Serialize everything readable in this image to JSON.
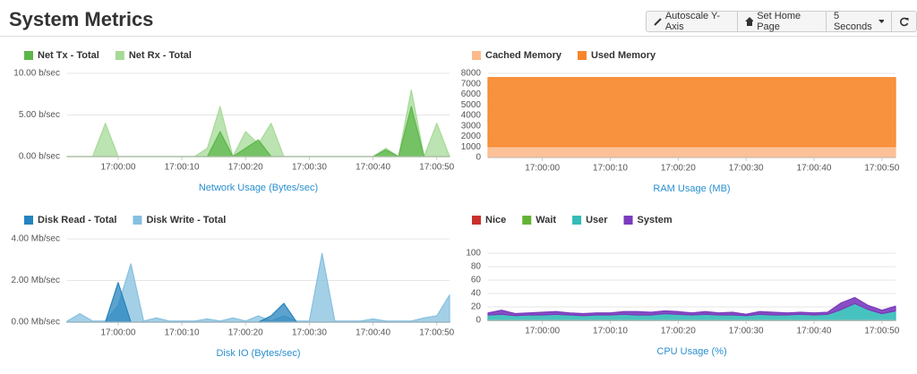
{
  "header": {
    "title": "System Metrics",
    "buttons": [
      "Autoscale Y-Axis",
      "Set Home Page",
      "5 Seconds"
    ]
  },
  "chart_data": [
    {
      "type": "area",
      "stacked": false,
      "xlabel": "Network Usage (Bytes/sec)",
      "grid": true,
      "x": [
        "16:59:52",
        "16:59:54",
        "16:59:56",
        "16:59:58",
        "17:00:00",
        "17:00:02",
        "17:00:04",
        "17:00:06",
        "17:00:08",
        "17:00:10",
        "17:00:12",
        "17:00:14",
        "17:00:16",
        "17:00:18",
        "17:00:20",
        "17:00:22",
        "17:00:24",
        "17:00:26",
        "17:00:28",
        "17:00:30",
        "17:00:32",
        "17:00:34",
        "17:00:36",
        "17:00:38",
        "17:00:40",
        "17:00:42",
        "17:00:44",
        "17:00:46",
        "17:00:48",
        "17:00:50",
        "17:00:52"
      ],
      "xlim": [
        "16:59:52",
        "17:00:52"
      ],
      "xticks": [
        "17:00:00",
        "17:00:10",
        "17:00:20",
        "17:00:30",
        "17:00:40",
        "17:00:50"
      ],
      "ylim": [
        0,
        10
      ],
      "yticks": [
        {
          "value": 0,
          "label": "0.00 b/sec"
        },
        {
          "value": 5,
          "label": "5.00 b/sec"
        },
        {
          "value": 10,
          "label": "10.00 b/sec"
        }
      ],
      "series": [
        {
          "name": "Net Tx - Total",
          "color": "#5cb749",
          "values": [
            0,
            0,
            0,
            0,
            0,
            0,
            0,
            0,
            0,
            0,
            0,
            0,
            3,
            0,
            1,
            2,
            0,
            0,
            0,
            0,
            0,
            0,
            0,
            0,
            0,
            0.8,
            0,
            6,
            0,
            0,
            0
          ]
        },
        {
          "name": "Net Rx - Total",
          "color": "#a6da98",
          "values": [
            0,
            0,
            0,
            4,
            0,
            0,
            0,
            0,
            0,
            0,
            0,
            1,
            6,
            0,
            3,
            1.5,
            4,
            0,
            0,
            0,
            0,
            0,
            0,
            0,
            0,
            1,
            0,
            8,
            0,
            4,
            0
          ]
        }
      ]
    },
    {
      "type": "area",
      "stacked": true,
      "xlabel": "RAM Usage (MB)",
      "grid": true,
      "x": [
        "16:59:52",
        "16:59:54",
        "16:59:56",
        "16:59:58",
        "17:00:00",
        "17:00:02",
        "17:00:04",
        "17:00:06",
        "17:00:08",
        "17:00:10",
        "17:00:12",
        "17:00:14",
        "17:00:16",
        "17:00:18",
        "17:00:20",
        "17:00:22",
        "17:00:24",
        "17:00:26",
        "17:00:28",
        "17:00:30",
        "17:00:32",
        "17:00:34",
        "17:00:36",
        "17:00:38",
        "17:00:40",
        "17:00:42",
        "17:00:44",
        "17:00:46",
        "17:00:48",
        "17:00:50",
        "17:00:52"
      ],
      "xlim": [
        "16:59:52",
        "17:00:52"
      ],
      "xticks": [
        "17:00:00",
        "17:00:10",
        "17:00:20",
        "17:00:30",
        "17:00:40",
        "17:00:50"
      ],
      "ylim": [
        0,
        8000
      ],
      "yticks": [
        0,
        1000,
        2000,
        3000,
        4000,
        5000,
        6000,
        7000,
        8000
      ],
      "series": [
        {
          "name": "Cached Memory",
          "color": "#fdba8c",
          "values": [
            1050,
            1050,
            1050,
            1050,
            1050,
            1050,
            1050,
            1050,
            1050,
            1050,
            1050,
            1050,
            1050,
            1050,
            1050,
            1050,
            1050,
            1050,
            1050,
            1050,
            1050,
            1050,
            1050,
            1050,
            1050,
            1050,
            1050,
            1050,
            1050,
            1050,
            1050
          ]
        },
        {
          "name": "Used Memory",
          "color": "#f8862a",
          "values": [
            6550,
            6550,
            6550,
            6550,
            6550,
            6550,
            6550,
            6550,
            6550,
            6550,
            6550,
            6550,
            6550,
            6550,
            6550,
            6550,
            6550,
            6550,
            6550,
            6550,
            6550,
            6550,
            6550,
            6550,
            6550,
            6550,
            6550,
            6550,
            6550,
            6550,
            6550
          ]
        }
      ]
    },
    {
      "type": "area",
      "stacked": false,
      "xlabel": "Disk IO (Bytes/sec)",
      "grid": true,
      "x": [
        "16:59:52",
        "16:59:54",
        "16:59:56",
        "16:59:58",
        "17:00:00",
        "17:00:02",
        "17:00:04",
        "17:00:06",
        "17:00:08",
        "17:00:10",
        "17:00:12",
        "17:00:14",
        "17:00:16",
        "17:00:18",
        "17:00:20",
        "17:00:22",
        "17:00:24",
        "17:00:26",
        "17:00:28",
        "17:00:30",
        "17:00:32",
        "17:00:34",
        "17:00:36",
        "17:00:38",
        "17:00:40",
        "17:00:42",
        "17:00:44",
        "17:00:46",
        "17:00:48",
        "17:00:50",
        "17:00:52"
      ],
      "xlim": [
        "16:59:52",
        "17:00:52"
      ],
      "xticks": [
        "17:00:00",
        "17:00:10",
        "17:00:20",
        "17:00:30",
        "17:00:40",
        "17:00:50"
      ],
      "ylim": [
        0,
        4
      ],
      "yticks": [
        {
          "value": 0,
          "label": "0.00 Mb/sec"
        },
        {
          "value": 2,
          "label": "2.00 Mb/sec"
        },
        {
          "value": 4,
          "label": "4.00 Mb/sec"
        }
      ],
      "series": [
        {
          "name": "Disk Read - Total",
          "color": "#2583bd",
          "values": [
            0,
            0,
            0,
            0,
            1.9,
            0,
            0,
            0,
            0,
            0,
            0,
            0,
            0,
            0,
            0,
            0,
            0.3,
            0.9,
            0,
            0,
            0,
            0,
            0,
            0,
            0,
            0,
            0,
            0,
            0,
            0,
            0
          ]
        },
        {
          "name": "Disk Write - Total",
          "color": "#86c0df",
          "values": [
            0.05,
            0.4,
            0.05,
            0.05,
            0.8,
            2.8,
            0.05,
            0.2,
            0.05,
            0.05,
            0.05,
            0.15,
            0.05,
            0.2,
            0.05,
            0.3,
            0.05,
            0.3,
            0.05,
            0.05,
            3.3,
            0.05,
            0.05,
            0.05,
            0.15,
            0.05,
            0.05,
            0.05,
            0.2,
            0.3,
            1.3
          ]
        }
      ]
    },
    {
      "type": "area",
      "stacked": true,
      "xlabel": "CPU Usage (%)",
      "grid": true,
      "x": [
        "16:59:52",
        "16:59:54",
        "16:59:56",
        "16:59:58",
        "17:00:00",
        "17:00:02",
        "17:00:04",
        "17:00:06",
        "17:00:08",
        "17:00:10",
        "17:00:12",
        "17:00:14",
        "17:00:16",
        "17:00:18",
        "17:00:20",
        "17:00:22",
        "17:00:24",
        "17:00:26",
        "17:00:28",
        "17:00:30",
        "17:00:32",
        "17:00:34",
        "17:00:36",
        "17:00:38",
        "17:00:40",
        "17:00:42",
        "17:00:44",
        "17:00:46",
        "17:00:48",
        "17:00:50",
        "17:00:52"
      ],
      "xlim": [
        "16:59:52",
        "17:00:52"
      ],
      "xticks": [
        "17:00:00",
        "17:00:10",
        "17:00:20",
        "17:00:30",
        "17:00:40",
        "17:00:50"
      ],
      "ylim": [
        0,
        100
      ],
      "yticks": [
        0,
        20,
        40,
        60,
        80,
        100
      ],
      "series": [
        {
          "name": "Nice",
          "color": "#c9302c",
          "values": [
            0,
            0,
            0,
            0,
            0,
            0,
            0,
            0,
            0,
            0,
            0,
            0,
            0,
            0,
            0,
            0,
            0,
            0,
            0,
            0,
            0,
            0,
            0,
            0,
            0,
            0,
            0,
            0,
            0,
            0,
            0
          ]
        },
        {
          "name": "Wait",
          "color": "#62b334",
          "values": [
            0,
            0,
            0,
            0,
            0,
            0,
            0,
            0,
            0,
            0,
            0,
            0,
            0,
            0,
            0,
            0,
            0,
            0,
            0,
            0,
            0,
            0,
            0,
            0,
            0,
            0,
            0,
            0,
            0,
            0,
            0
          ]
        },
        {
          "name": "User",
          "color": "#33bcb8",
          "values": [
            8,
            9,
            7,
            8,
            8,
            9,
            8,
            7,
            8,
            8,
            9,
            8,
            8,
            10,
            9,
            8,
            9,
            8,
            8,
            7,
            9,
            8,
            8,
            9,
            8,
            9,
            16,
            25,
            16,
            10,
            14
          ]
        },
        {
          "name": "System",
          "color": "#7a3bbd",
          "values": [
            3,
            6,
            3,
            3,
            4,
            4,
            3,
            3,
            3,
            3,
            4,
            5,
            4,
            4,
            4,
            3,
            4,
            3,
            4,
            2,
            4,
            4,
            3,
            3,
            3,
            3,
            10,
            9,
            6,
            5,
            7
          ]
        }
      ]
    }
  ]
}
